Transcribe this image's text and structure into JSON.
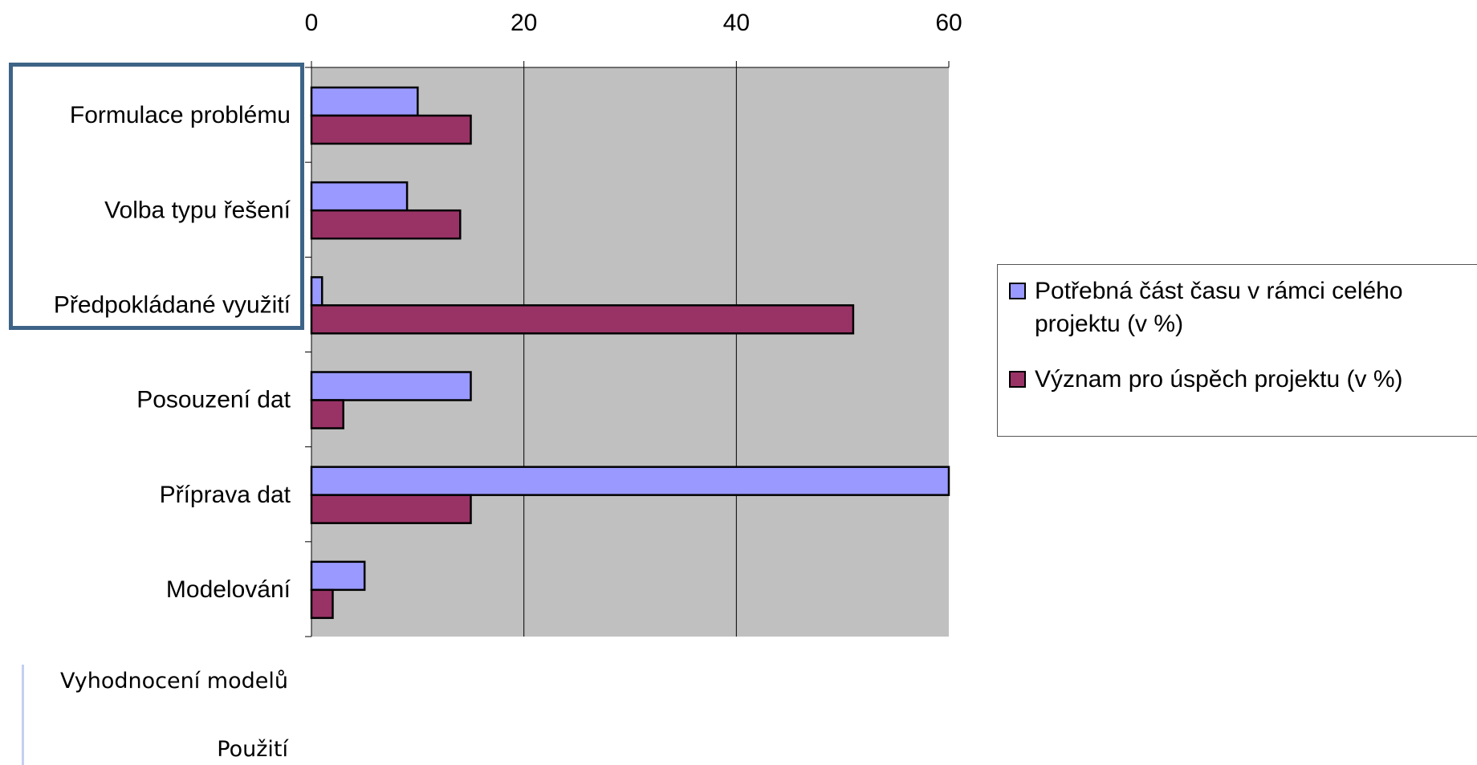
{
  "chart_data": {
    "type": "bar",
    "orientation": "horizontal",
    "categories": [
      "Formulace problému",
      "Volba typu řešení",
      "Předpokládané využití",
      "Posouzení dat",
      "Příprava dat",
      "Modelování"
    ],
    "series": [
      {
        "name": "Potřebná část času v rámci celého projektu (v %)",
        "color": "#9999ff",
        "values": [
          10,
          9,
          1,
          15,
          60,
          5
        ]
      },
      {
        "name": "Význam pro úspěch projektu (v %)",
        "color": "#993366",
        "values": [
          15,
          14,
          51,
          3,
          15,
          2
        ]
      }
    ],
    "xlim": [
      0,
      60
    ],
    "xticks": [
      "0",
      "20",
      "40",
      "60"
    ],
    "xtick_values": [
      0,
      20,
      40,
      60
    ],
    "x_axis_position": "top",
    "plot_background": "#c0c0c0",
    "grid": true,
    "legend_position": "right",
    "highlighted_categories": [
      "Formulace problému",
      "Volba typu řešení",
      "Předpokládané využití"
    ],
    "highlight_color": "#3d6487"
  },
  "extra_labels": [
    "Vyhodnocení modelů",
    "Použití"
  ]
}
